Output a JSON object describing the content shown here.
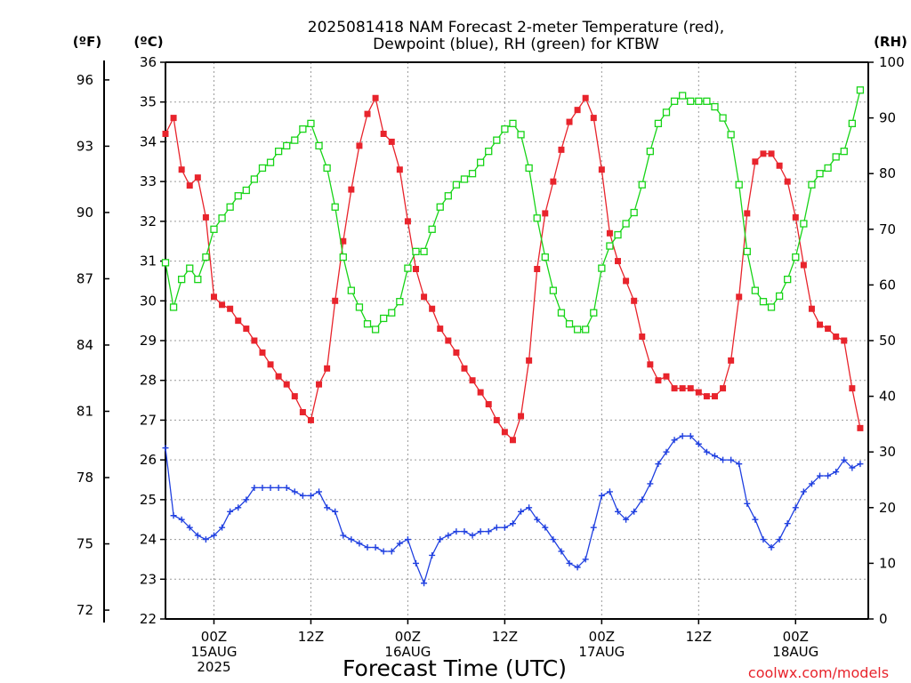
{
  "title_line1": "2025081418 NAM Forecast 2-meter Temperature (red),",
  "title_line2": "Dewpoint (blue), RH (green) for KTBW",
  "units": {
    "f": "(ºF)",
    "c": "(ºC)",
    "rh": "(RH)"
  },
  "xlabel": "Forecast Time (UTC)",
  "credit": "coolwx.com/models",
  "colors": {
    "temperature": "#e8242c",
    "dewpoint": "#2040e0",
    "rh": "#18d418"
  },
  "chart_data": {
    "type": "line",
    "x_unit": "hours from 2025-08-14 18Z",
    "xlim": [
      0,
      87
    ],
    "y_left_celsius": {
      "range": [
        22,
        36
      ],
      "ticks": [
        22,
        23,
        24,
        25,
        26,
        27,
        28,
        29,
        30,
        31,
        32,
        33,
        34,
        35,
        36
      ]
    },
    "y_left_fahrenheit": {
      "ticks": [
        72,
        75,
        78,
        81,
        84,
        87,
        90,
        93,
        96
      ]
    },
    "y_right_rh": {
      "range": [
        0,
        100
      ],
      "ticks": [
        0,
        10,
        20,
        30,
        40,
        50,
        60,
        70,
        80,
        90,
        100
      ]
    },
    "x_ticks": [
      {
        "x": 6,
        "lines": [
          "00Z",
          "15AUG",
          "2025"
        ]
      },
      {
        "x": 18,
        "lines": [
          "12Z"
        ]
      },
      {
        "x": 30,
        "lines": [
          "00Z",
          "16AUG"
        ]
      },
      {
        "x": 42,
        "lines": [
          "12Z"
        ]
      },
      {
        "x": 54,
        "lines": [
          "00Z",
          "17AUG"
        ]
      },
      {
        "x": 66,
        "lines": [
          "12Z"
        ]
      },
      {
        "x": 78,
        "lines": [
          "00Z",
          "18AUG"
        ]
      }
    ],
    "grid": true,
    "series": [
      {
        "key": "temperature",
        "axis": "celsius",
        "marker": "filled-square",
        "values": [
          [
            0,
            34.2
          ],
          [
            1,
            34.6
          ],
          [
            2,
            33.3
          ],
          [
            3,
            32.9
          ],
          [
            4,
            33.1
          ],
          [
            5,
            32.1
          ],
          [
            6,
            30.1
          ],
          [
            7,
            29.9
          ],
          [
            8,
            29.8
          ],
          [
            9,
            29.5
          ],
          [
            10,
            29.3
          ],
          [
            11,
            29.0
          ],
          [
            12,
            28.7
          ],
          [
            13,
            28.4
          ],
          [
            14,
            28.1
          ],
          [
            15,
            27.9
          ],
          [
            16,
            27.6
          ],
          [
            17,
            27.2
          ],
          [
            18,
            27.0
          ],
          [
            19,
            27.9
          ],
          [
            20,
            28.3
          ],
          [
            21,
            30.0
          ],
          [
            22,
            31.5
          ],
          [
            23,
            32.8
          ],
          [
            24,
            33.9
          ],
          [
            25,
            34.7
          ],
          [
            26,
            35.1
          ],
          [
            27,
            34.2
          ],
          [
            28,
            34.0
          ],
          [
            29,
            33.3
          ],
          [
            30,
            32.0
          ],
          [
            31,
            30.8
          ],
          [
            32,
            30.1
          ],
          [
            33,
            29.8
          ],
          [
            34,
            29.3
          ],
          [
            35,
            29.0
          ],
          [
            36,
            28.7
          ],
          [
            37,
            28.3
          ],
          [
            38,
            28.0
          ],
          [
            39,
            27.7
          ],
          [
            40,
            27.4
          ],
          [
            41,
            27.0
          ],
          [
            42,
            26.7
          ],
          [
            43,
            26.5
          ],
          [
            44,
            27.1
          ],
          [
            45,
            28.5
          ],
          [
            46,
            30.8
          ],
          [
            47,
            32.2
          ],
          [
            48,
            33.0
          ],
          [
            49,
            33.8
          ],
          [
            50,
            34.5
          ],
          [
            51,
            34.8
          ],
          [
            52,
            35.1
          ],
          [
            53,
            34.6
          ],
          [
            54,
            33.3
          ],
          [
            55,
            31.7
          ],
          [
            56,
            31.0
          ],
          [
            57,
            30.5
          ],
          [
            58,
            30.0
          ],
          [
            59,
            29.1
          ],
          [
            60,
            28.4
          ],
          [
            61,
            28.0
          ],
          [
            62,
            28.1
          ],
          [
            63,
            27.8
          ],
          [
            64,
            27.8
          ],
          [
            65,
            27.8
          ],
          [
            66,
            27.7
          ],
          [
            67,
            27.6
          ],
          [
            68,
            27.6
          ],
          [
            69,
            27.8
          ],
          [
            70,
            28.5
          ],
          [
            71,
            30.1
          ],
          [
            72,
            32.2
          ],
          [
            73,
            33.5
          ],
          [
            74,
            33.7
          ],
          [
            75,
            33.7
          ],
          [
            76,
            33.4
          ],
          [
            77,
            33.0
          ],
          [
            78,
            32.1
          ],
          [
            79,
            30.9
          ],
          [
            80,
            29.8
          ],
          [
            81,
            29.4
          ],
          [
            82,
            29.3
          ],
          [
            83,
            29.1
          ],
          [
            84,
            29.0
          ],
          [
            85,
            27.8
          ],
          [
            86,
            26.8
          ]
        ]
      },
      {
        "key": "dewpoint",
        "axis": "celsius",
        "marker": "plus",
        "values": [
          [
            0,
            26.3
          ],
          [
            1,
            24.6
          ],
          [
            2,
            24.5
          ],
          [
            3,
            24.3
          ],
          [
            4,
            24.1
          ],
          [
            5,
            24.0
          ],
          [
            6,
            24.1
          ],
          [
            7,
            24.3
          ],
          [
            8,
            24.7
          ],
          [
            9,
            24.8
          ],
          [
            10,
            25.0
          ],
          [
            11,
            25.3
          ],
          [
            12,
            25.3
          ],
          [
            13,
            25.3
          ],
          [
            14,
            25.3
          ],
          [
            15,
            25.3
          ],
          [
            16,
            25.2
          ],
          [
            17,
            25.1
          ],
          [
            18,
            25.1
          ],
          [
            19,
            25.2
          ],
          [
            20,
            24.8
          ],
          [
            21,
            24.7
          ],
          [
            22,
            24.1
          ],
          [
            23,
            24.0
          ],
          [
            24,
            23.9
          ],
          [
            25,
            23.8
          ],
          [
            26,
            23.8
          ],
          [
            27,
            23.7
          ],
          [
            28,
            23.7
          ],
          [
            29,
            23.9
          ],
          [
            30,
            24.0
          ],
          [
            31,
            23.4
          ],
          [
            32,
            22.9
          ],
          [
            33,
            23.6
          ],
          [
            34,
            24.0
          ],
          [
            35,
            24.1
          ],
          [
            36,
            24.2
          ],
          [
            37,
            24.2
          ],
          [
            38,
            24.1
          ],
          [
            39,
            24.2
          ],
          [
            40,
            24.2
          ],
          [
            41,
            24.3
          ],
          [
            42,
            24.3
          ],
          [
            43,
            24.4
          ],
          [
            44,
            24.7
          ],
          [
            45,
            24.8
          ],
          [
            46,
            24.5
          ],
          [
            47,
            24.3
          ],
          [
            48,
            24.0
          ],
          [
            49,
            23.7
          ],
          [
            50,
            23.4
          ],
          [
            51,
            23.3
          ],
          [
            52,
            23.5
          ],
          [
            53,
            24.3
          ],
          [
            54,
            25.1
          ],
          [
            55,
            25.2
          ],
          [
            56,
            24.7
          ],
          [
            57,
            24.5
          ],
          [
            58,
            24.7
          ],
          [
            59,
            25.0
          ],
          [
            60,
            25.4
          ],
          [
            61,
            25.9
          ],
          [
            62,
            26.2
          ],
          [
            63,
            26.5
          ],
          [
            64,
            26.6
          ],
          [
            65,
            26.6
          ],
          [
            66,
            26.4
          ],
          [
            67,
            26.2
          ],
          [
            68,
            26.1
          ],
          [
            69,
            26.0
          ],
          [
            70,
            26.0
          ],
          [
            71,
            25.9
          ],
          [
            72,
            24.9
          ],
          [
            73,
            24.5
          ],
          [
            74,
            24.0
          ],
          [
            75,
            23.8
          ],
          [
            76,
            24.0
          ],
          [
            77,
            24.4
          ],
          [
            78,
            24.8
          ],
          [
            79,
            25.2
          ],
          [
            80,
            25.4
          ],
          [
            81,
            25.6
          ],
          [
            82,
            25.6
          ],
          [
            83,
            25.7
          ],
          [
            84,
            26.0
          ],
          [
            85,
            25.8
          ],
          [
            86,
            25.9
          ]
        ]
      },
      {
        "key": "rh",
        "axis": "rh",
        "marker": "open-square",
        "values": [
          [
            0,
            64
          ],
          [
            1,
            56
          ],
          [
            2,
            61
          ],
          [
            3,
            63
          ],
          [
            4,
            61
          ],
          [
            5,
            65
          ],
          [
            6,
            70
          ],
          [
            7,
            72
          ],
          [
            8,
            74
          ],
          [
            9,
            76
          ],
          [
            10,
            77
          ],
          [
            11,
            79
          ],
          [
            12,
            81
          ],
          [
            13,
            82
          ],
          [
            14,
            84
          ],
          [
            15,
            85
          ],
          [
            16,
            86
          ],
          [
            17,
            88
          ],
          [
            18,
            89
          ],
          [
            19,
            85
          ],
          [
            20,
            81
          ],
          [
            21,
            74
          ],
          [
            22,
            65
          ],
          [
            23,
            59
          ],
          [
            24,
            56
          ],
          [
            25,
            53
          ],
          [
            26,
            52
          ],
          [
            27,
            54
          ],
          [
            28,
            55
          ],
          [
            29,
            57
          ],
          [
            30,
            63
          ],
          [
            31,
            66
          ],
          [
            32,
            66
          ],
          [
            33,
            70
          ],
          [
            34,
            74
          ],
          [
            35,
            76
          ],
          [
            36,
            78
          ],
          [
            37,
            79
          ],
          [
            38,
            80
          ],
          [
            39,
            82
          ],
          [
            40,
            84
          ],
          [
            41,
            86
          ],
          [
            42,
            88
          ],
          [
            43,
            89
          ],
          [
            44,
            87
          ],
          [
            45,
            81
          ],
          [
            46,
            72
          ],
          [
            47,
            65
          ],
          [
            48,
            59
          ],
          [
            49,
            55
          ],
          [
            50,
            53
          ],
          [
            51,
            52
          ],
          [
            52,
            52
          ],
          [
            53,
            55
          ],
          [
            54,
            63
          ],
          [
            55,
            67
          ],
          [
            56,
            69
          ],
          [
            57,
            71
          ],
          [
            58,
            73
          ],
          [
            59,
            78
          ],
          [
            60,
            84
          ],
          [
            61,
            89
          ],
          [
            62,
            91
          ],
          [
            63,
            93
          ],
          [
            64,
            94
          ],
          [
            65,
            93
          ],
          [
            66,
            93
          ],
          [
            67,
            93
          ],
          [
            68,
            92
          ],
          [
            69,
            90
          ],
          [
            70,
            87
          ],
          [
            71,
            78
          ],
          [
            72,
            66
          ],
          [
            73,
            59
          ],
          [
            74,
            57
          ],
          [
            75,
            56
          ],
          [
            76,
            58
          ],
          [
            77,
            61
          ],
          [
            78,
            65
          ],
          [
            79,
            71
          ],
          [
            80,
            78
          ],
          [
            81,
            80
          ],
          [
            82,
            81
          ],
          [
            83,
            83
          ],
          [
            84,
            84
          ],
          [
            85,
            89
          ],
          [
            86,
            95
          ]
        ]
      }
    ]
  }
}
